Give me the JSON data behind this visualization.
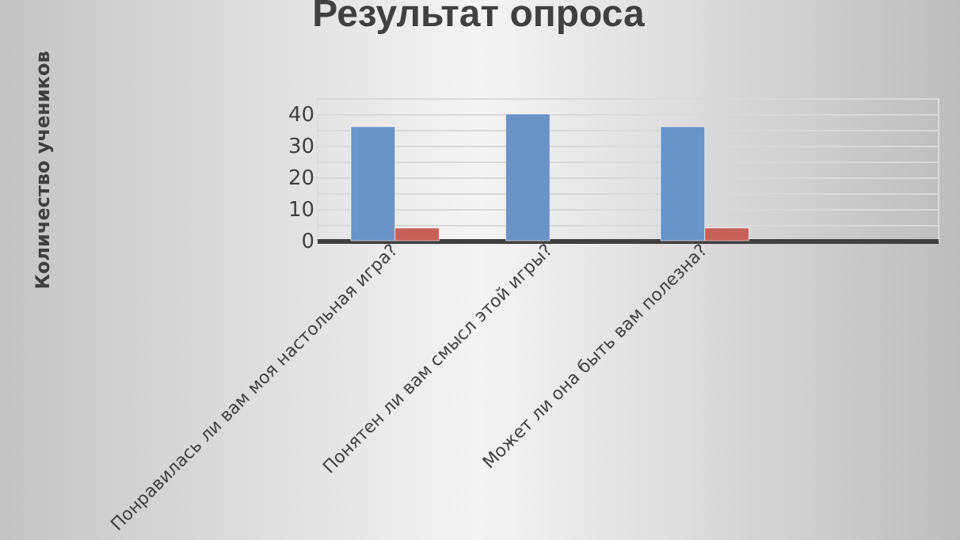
{
  "chart_data": {
    "type": "bar",
    "title": "Результат опроса",
    "ylabel": "Количество учеников",
    "categories": [
      "Понравилась ли вам моя настольная игра?",
      "Понятен ли вам смысл этой игры?",
      "Может ли она быть вам полезна?",
      null
    ],
    "series": [
      {
        "color": "#6a93c8",
        "values": [
          36,
          40,
          36,
          null
        ]
      },
      {
        "color": "#c8605a",
        "values": [
          4,
          null,
          4,
          null
        ]
      }
    ],
    "ylim": [
      0,
      45
    ],
    "yticks": [
      0,
      {
        "value": 5,
        "label": null
      },
      10,
      {
        "value": 15,
        "label": null
      },
      20,
      {
        "value": 25,
        "label": null
      },
      30,
      {
        "value": 35,
        "label": null
      },
      40,
      {
        "value": 45,
        "label": null
      }
    ],
    "grid": "y",
    "legend": false
  }
}
